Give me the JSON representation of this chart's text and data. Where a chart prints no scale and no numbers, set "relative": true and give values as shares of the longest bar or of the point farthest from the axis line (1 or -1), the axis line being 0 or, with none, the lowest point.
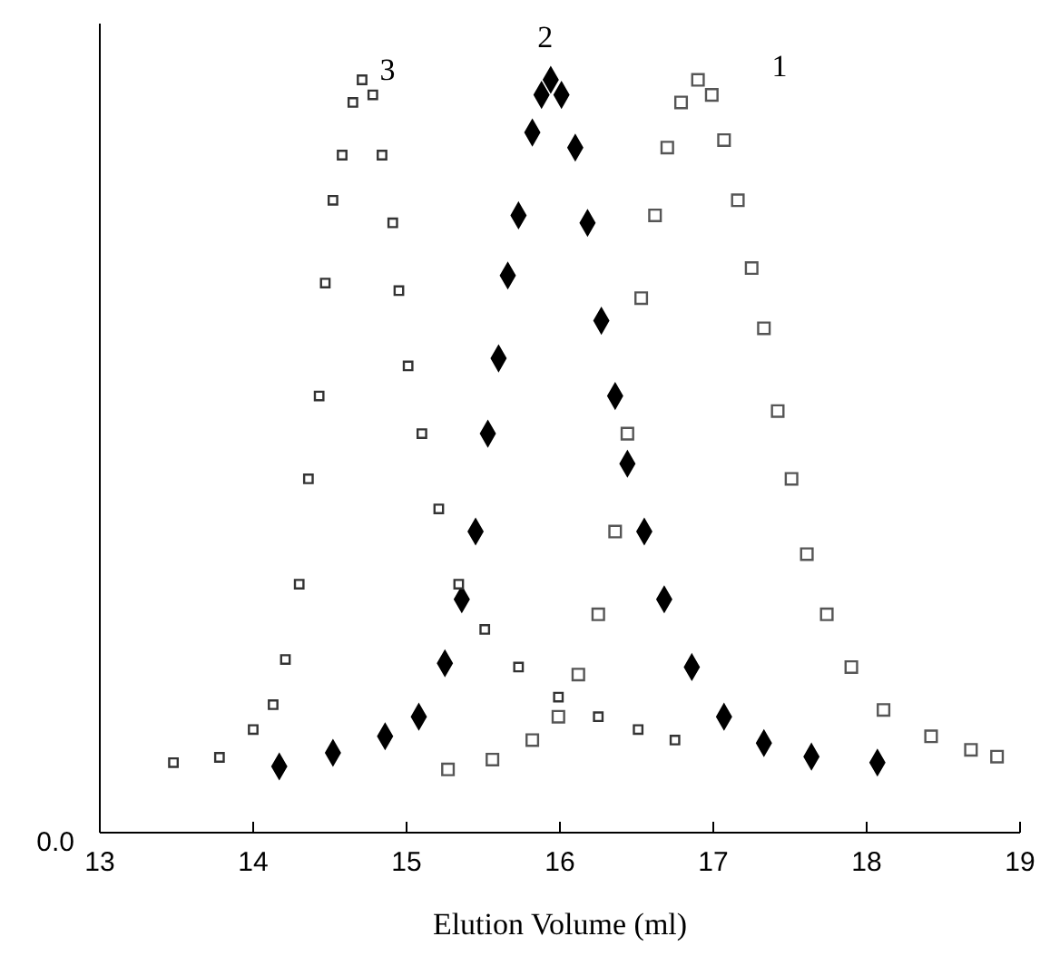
{
  "chart_data": {
    "type": "scatter",
    "relative": true,
    "xlabel": "Elution Volume (ml)",
    "xlim": [
      13,
      19
    ],
    "xticks": [
      13,
      14,
      15,
      16,
      17,
      18,
      19
    ],
    "grid": false,
    "annotations": [
      "0.0"
    ],
    "series": [
      {
        "name": "1",
        "color": "#555555",
        "marker": "square",
        "x": [
          15.27,
          15.56,
          15.82,
          15.99,
          16.12,
          16.25,
          16.36,
          16.44,
          16.53,
          16.62,
          16.7,
          16.79,
          16.9,
          16.99,
          17.07,
          17.16,
          17.25,
          17.33,
          17.42,
          17.51,
          17.61,
          17.74,
          17.9,
          18.11,
          18.42,
          18.68,
          18.85
        ],
        "values": [
          0.084,
          0.097,
          0.123,
          0.154,
          0.21,
          0.29,
          0.4,
          0.53,
          0.71,
          0.82,
          0.91,
          0.97,
          1,
          0.98,
          0.92,
          0.84,
          0.75,
          0.67,
          0.56,
          0.47,
          0.37,
          0.29,
          0.22,
          0.163,
          0.128,
          0.11,
          0.101
        ]
      },
      {
        "name": "2",
        "color": "#000000",
        "marker": "diamond",
        "x": [
          14.17,
          14.52,
          14.86,
          15.08,
          15.25,
          15.36,
          15.45,
          15.53,
          15.6,
          15.66,
          15.73,
          15.82,
          15.88,
          15.94,
          16.01,
          16.1,
          16.18,
          16.27,
          16.36,
          16.44,
          16.55,
          16.68,
          16.86,
          17.07,
          17.33,
          17.64,
          18.07
        ],
        "values": [
          0.088,
          0.106,
          0.128,
          0.154,
          0.225,
          0.31,
          0.4,
          0.53,
          0.63,
          0.74,
          0.82,
          0.93,
          0.98,
          1,
          0.98,
          0.91,
          0.81,
          0.68,
          0.58,
          0.49,
          0.4,
          0.31,
          0.22,
          0.154,
          0.119,
          0.101,
          0.093
        ]
      },
      {
        "name": "3",
        "color": "#333333",
        "marker": "square",
        "x": [
          13.48,
          13.78,
          14.0,
          14.13,
          14.21,
          14.3,
          14.36,
          14.43,
          14.47,
          14.52,
          14.58,
          14.65,
          14.71,
          14.78,
          14.84,
          14.91,
          14.95,
          15.01,
          15.1,
          15.21,
          15.34,
          15.51,
          15.73,
          15.99,
          16.25,
          16.51,
          16.75
        ],
        "values": [
          0.093,
          0.1,
          0.137,
          0.17,
          0.23,
          0.33,
          0.47,
          0.58,
          0.73,
          0.84,
          0.9,
          0.97,
          1,
          0.98,
          0.9,
          0.81,
          0.72,
          0.62,
          0.53,
          0.43,
          0.33,
          0.27,
          0.22,
          0.18,
          0.154,
          0.137,
          0.123
        ]
      }
    ]
  }
}
